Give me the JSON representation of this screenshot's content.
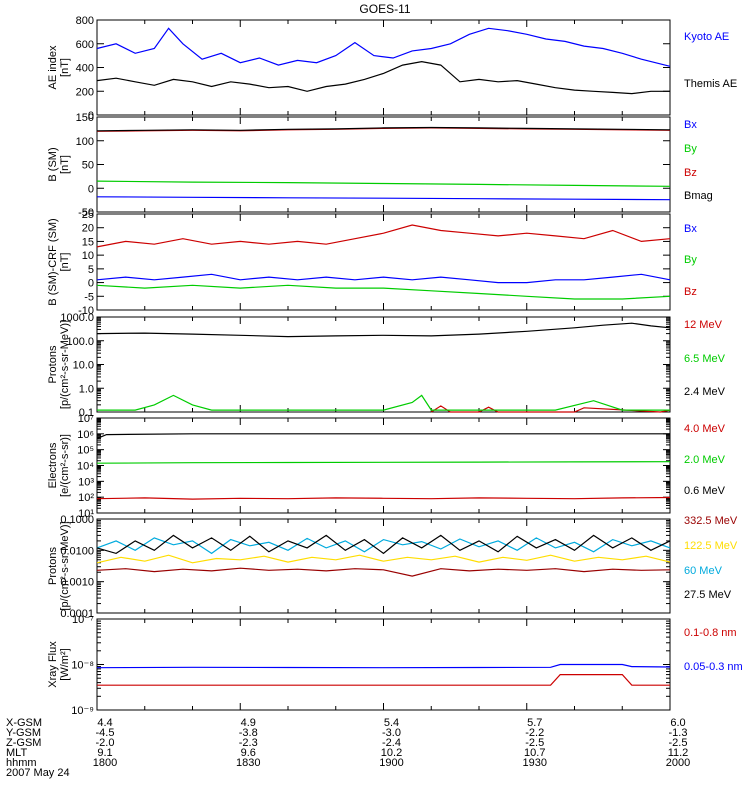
{
  "title": "GOES-11",
  "date_label": "2007 May 24",
  "colors": {
    "blue": "#0000ff",
    "green": "#00cc00",
    "red": "#cc0000",
    "darkred": "#990000",
    "black": "#000000",
    "cyan": "#00aadd",
    "yellow": "#ffdd00"
  },
  "bottom_axis": {
    "tick_times": [
      1800,
      1830,
      1900,
      1930,
      2000
    ],
    "rows": [
      {
        "name": "X-GSM",
        "values": [
          "4.4",
          "4.9",
          "5.4",
          "5.7",
          "6.0"
        ]
      },
      {
        "name": "Y-GSM",
        "values": [
          "-4.5",
          "-3.8",
          "-3.0",
          "-2.2",
          "-1.3"
        ]
      },
      {
        "name": "Z-GSM",
        "values": [
          "-2.0",
          "-2.3",
          "-2.4",
          "-2.5",
          "-2.5"
        ]
      },
      {
        "name": "MLT",
        "values": [
          "9.1",
          "9.6",
          "10.2",
          "10.7",
          "11.2"
        ]
      },
      {
        "name": "hhmm",
        "values": [
          "1800",
          "1830",
          "1900",
          "1930",
          "2000"
        ]
      }
    ]
  },
  "chart_data": [
    {
      "type": "line",
      "ylabel": "AE index\n[nT]",
      "ylim": [
        0,
        800
      ],
      "yticks": [
        0,
        200,
        400,
        600,
        800
      ],
      "ytick_labels": [
        "0",
        "200",
        "400",
        "600",
        "800"
      ],
      "log": false,
      "series": [
        {
          "name": "Kyoto AE",
          "color": "#0000ff",
          "x": [
            0,
            4,
            8,
            12,
            15,
            18,
            22,
            26,
            30,
            34,
            38,
            42,
            46,
            50,
            54,
            58,
            62,
            66,
            70,
            74,
            78,
            82,
            86,
            90,
            94,
            98,
            102,
            106,
            110,
            114,
            120
          ],
          "y": [
            560,
            600,
            520,
            560,
            730,
            600,
            470,
            520,
            440,
            480,
            420,
            460,
            440,
            500,
            610,
            500,
            480,
            540,
            560,
            600,
            680,
            730,
            710,
            680,
            640,
            620,
            580,
            560,
            520,
            470,
            410
          ]
        },
        {
          "name": "Themis AE",
          "color": "#000000",
          "x": [
            0,
            4,
            8,
            12,
            16,
            20,
            24,
            28,
            32,
            36,
            40,
            44,
            48,
            52,
            56,
            60,
            64,
            68,
            72,
            76,
            80,
            84,
            88,
            92,
            96,
            100,
            104,
            108,
            112,
            116,
            120
          ],
          "y": [
            290,
            310,
            280,
            250,
            300,
            280,
            240,
            280,
            260,
            230,
            240,
            200,
            240,
            260,
            300,
            350,
            420,
            450,
            420,
            280,
            300,
            280,
            290,
            260,
            230,
            210,
            200,
            190,
            180,
            200,
            200
          ]
        }
      ]
    },
    {
      "type": "line",
      "ylabel": "B (SM)\n[nT]",
      "ylim": [
        -50,
        150
      ],
      "yticks": [
        -50,
        0,
        50,
        100,
        150
      ],
      "ytick_labels": [
        "-50",
        "0",
        "50",
        "100",
        "150"
      ],
      "log": false,
      "series": [
        {
          "name": "Bx",
          "color": "#0000ff",
          "x": [
            0,
            20,
            40,
            60,
            80,
            100,
            120
          ],
          "y": [
            -18,
            -19,
            -20,
            -21,
            -22,
            -23,
            -24
          ]
        },
        {
          "name": "By",
          "color": "#00cc00",
          "x": [
            0,
            20,
            40,
            60,
            80,
            100,
            120
          ],
          "y": [
            15,
            13,
            12,
            10,
            8,
            6,
            4
          ]
        },
        {
          "name": "Bz",
          "color": "#cc0000",
          "x": [
            0,
            10,
            20,
            30,
            40,
            50,
            60,
            70,
            80,
            90,
            100,
            110,
            120
          ],
          "y": [
            120,
            121,
            122,
            121,
            123,
            124,
            126,
            127,
            126,
            125,
            124,
            123,
            122
          ]
        },
        {
          "name": "Bmag",
          "color": "#000000",
          "x": [
            0,
            10,
            20,
            30,
            40,
            50,
            60,
            70,
            80,
            90,
            100,
            110,
            120
          ],
          "y": [
            121,
            122,
            123,
            122,
            124,
            125,
            127,
            128,
            127,
            126,
            125,
            124,
            123
          ]
        }
      ]
    },
    {
      "type": "line",
      "ylabel": "B (SM)-CRF (SM)\n[nT]",
      "ylim": [
        -10,
        25
      ],
      "yticks": [
        -10,
        -5,
        0,
        5,
        10,
        15,
        20,
        25
      ],
      "ytick_labels": [
        "-10",
        "-5",
        "0",
        "5",
        "10",
        "15",
        "20",
        "25"
      ],
      "log": false,
      "series": [
        {
          "name": "Bx",
          "color": "#0000ff",
          "x": [
            0,
            6,
            12,
            18,
            24,
            30,
            36,
            42,
            48,
            54,
            60,
            66,
            72,
            78,
            84,
            90,
            96,
            102,
            108,
            114,
            120
          ],
          "y": [
            1,
            2,
            1,
            2,
            3,
            1,
            2,
            1,
            2,
            1,
            2,
            1,
            2,
            1,
            0,
            0,
            1,
            1,
            2,
            3,
            1
          ]
        },
        {
          "name": "By",
          "color": "#00cc00",
          "x": [
            0,
            10,
            20,
            30,
            40,
            50,
            60,
            70,
            80,
            90,
            100,
            110,
            120
          ],
          "y": [
            -1,
            -2,
            -1,
            -2,
            -1,
            -2,
            -2,
            -3,
            -4,
            -5,
            -6,
            -6,
            -5
          ]
        },
        {
          "name": "Bz",
          "color": "#cc0000",
          "x": [
            0,
            6,
            12,
            18,
            24,
            30,
            36,
            42,
            48,
            54,
            60,
            66,
            72,
            78,
            84,
            90,
            96,
            102,
            108,
            114,
            120
          ],
          "y": [
            13,
            15,
            14,
            16,
            14,
            15,
            14,
            15,
            14,
            16,
            18,
            21,
            19,
            18,
            17,
            18,
            17,
            16,
            19,
            15,
            16
          ]
        }
      ]
    },
    {
      "type": "line",
      "ylabel": "Protons\n[p/(cm²-s-sr-MeV)]",
      "ylim": [
        0.1,
        1000
      ],
      "yticks": [
        0.1,
        1,
        10,
        100,
        1000
      ],
      "ytick_labels": [
        "0.1",
        "1.0",
        "10.0",
        "100.0",
        "1000.0"
      ],
      "log": true,
      "series": [
        {
          "name": "12 MeV",
          "color": "#cc0000",
          "x": [
            70,
            72,
            74,
            80,
            82,
            84,
            100,
            102,
            118,
            120
          ],
          "y": [
            0.1,
            0.18,
            0.1,
            0.1,
            0.16,
            0.1,
            0.1,
            0.15,
            0.1,
            0.12
          ]
        },
        {
          "name": "6.5 MeV",
          "color": "#00cc00",
          "x": [
            0,
            8,
            12,
            16,
            20,
            24,
            30,
            40,
            50,
            60,
            66,
            68,
            70,
            76,
            86,
            96,
            104,
            110,
            120
          ],
          "y": [
            0.12,
            0.12,
            0.2,
            0.5,
            0.2,
            0.12,
            0.12,
            0.12,
            0.12,
            0.12,
            0.25,
            0.5,
            0.12,
            0.12,
            0.12,
            0.12,
            0.3,
            0.12,
            0.12
          ]
        },
        {
          "name": "2.4 MeV",
          "color": "#000000",
          "x": [
            0,
            10,
            20,
            30,
            40,
            50,
            60,
            70,
            80,
            90,
            100,
            106,
            112,
            116,
            120
          ],
          "y": [
            200,
            210,
            190,
            170,
            150,
            160,
            170,
            160,
            190,
            250,
            350,
            450,
            550,
            420,
            350
          ]
        }
      ]
    },
    {
      "type": "line",
      "ylabel": "Electrons\n[e/(cm²-s-sr)]",
      "ylim": [
        10,
        10000000
      ],
      "yticks": [
        10,
        100,
        1000,
        10000,
        100000,
        1000000,
        10000000
      ],
      "ytick_labels": [
        "10¹",
        "10²",
        "10³",
        "10⁴",
        "10⁵",
        "10⁶",
        "10⁷"
      ],
      "log": true,
      "series": [
        {
          "name": "4.0 MeV",
          "color": "#cc0000",
          "x": [
            0,
            10,
            20,
            30,
            40,
            50,
            60,
            70,
            80,
            90,
            100,
            110,
            120
          ],
          "y": [
            80,
            90,
            75,
            85,
            80,
            90,
            85,
            80,
            90,
            85,
            80,
            90,
            95
          ]
        },
        {
          "name": "2.0 MeV",
          "color": "#00cc00",
          "x": [
            0,
            20,
            40,
            60,
            80,
            100,
            120
          ],
          "y": [
            14000,
            15000,
            15500,
            16000,
            16500,
            17000,
            17500
          ]
        },
        {
          "name": "0.6 MeV",
          "color": "#000000",
          "x": [
            0,
            2,
            20,
            40,
            60,
            80,
            100,
            120
          ],
          "y": [
            500000,
            900000,
            1000000,
            1000000,
            1000000,
            1000000,
            1000000,
            1000000
          ]
        }
      ]
    },
    {
      "type": "line",
      "ylabel": "Protons\n[p/(cm²-s-sr-MeV)]",
      "ylim": [
        0.0001,
        0.1
      ],
      "yticks": [
        0.0001,
        0.001,
        0.01,
        0.1
      ],
      "ytick_labels": [
        "0.0001",
        "0.0010",
        "0.0100",
        "0.1000"
      ],
      "log": true,
      "series": [
        {
          "name": "332.5 MeV",
          "color": "#990000",
          "x": [
            0,
            6,
            12,
            18,
            24,
            30,
            36,
            42,
            48,
            54,
            60,
            66,
            72,
            78,
            84,
            90,
            96,
            102,
            108,
            114,
            120
          ],
          "y": [
            0.0023,
            0.0026,
            0.0021,
            0.0025,
            0.0022,
            0.0027,
            0.0023,
            0.0025,
            0.0022,
            0.0026,
            0.0024,
            0.0015,
            0.0026,
            0.0022,
            0.0025,
            0.0023,
            0.0026,
            0.0021,
            0.0025,
            0.0023,
            0.0024
          ]
        },
        {
          "name": "122.5 MeV",
          "color": "#ffdd00",
          "x": [
            0,
            5,
            10,
            15,
            20,
            25,
            30,
            35,
            40,
            45,
            50,
            55,
            60,
            65,
            70,
            75,
            80,
            85,
            90,
            95,
            100,
            105,
            110,
            115,
            120
          ],
          "y": [
            0.004,
            0.006,
            0.0045,
            0.007,
            0.004,
            0.0055,
            0.005,
            0.0065,
            0.0042,
            0.006,
            0.005,
            0.007,
            0.0045,
            0.006,
            0.005,
            0.0065,
            0.0042,
            0.006,
            0.0048,
            0.007,
            0.0045,
            0.006,
            0.005,
            0.0065,
            0.0042
          ]
        },
        {
          "name": "60 MeV",
          "color": "#00aadd",
          "x": [
            0,
            4,
            8,
            12,
            16,
            20,
            24,
            28,
            32,
            36,
            40,
            44,
            48,
            52,
            56,
            60,
            64,
            68,
            72,
            76,
            80,
            84,
            88,
            92,
            96,
            100,
            104,
            108,
            112,
            116,
            120
          ],
          "y": [
            0.012,
            0.02,
            0.01,
            0.025,
            0.015,
            0.02,
            0.008,
            0.022,
            0.014,
            0.018,
            0.01,
            0.024,
            0.012,
            0.02,
            0.009,
            0.022,
            0.015,
            0.019,
            0.011,
            0.023,
            0.013,
            0.02,
            0.01,
            0.025,
            0.012,
            0.018,
            0.009,
            0.022,
            0.014,
            0.02,
            0.012
          ]
        },
        {
          "name": "27.5 MeV",
          "color": "#000000",
          "x": [
            0,
            4,
            8,
            12,
            16,
            20,
            24,
            28,
            32,
            36,
            40,
            44,
            48,
            52,
            56,
            60,
            64,
            68,
            72,
            76,
            80,
            84,
            88,
            92,
            96,
            100,
            104,
            108,
            112,
            116,
            120
          ],
          "y": [
            0.012,
            0.008,
            0.02,
            0.01,
            0.03,
            0.012,
            0.025,
            0.01,
            0.028,
            0.009,
            0.02,
            0.012,
            0.03,
            0.01,
            0.022,
            0.008,
            0.025,
            0.012,
            0.03,
            0.01,
            0.02,
            0.009,
            0.028,
            0.012,
            0.022,
            0.01,
            0.03,
            0.012,
            0.025,
            0.01,
            0.02
          ]
        }
      ]
    },
    {
      "type": "line",
      "ylabel": "Xray Flux\n[W/m²]",
      "ylim": [
        1e-09,
        1e-07
      ],
      "yticks": [
        1e-09,
        1e-08,
        1e-07
      ],
      "ytick_labels": [
        "10⁻⁹",
        "10⁻⁸",
        "10⁻⁷"
      ],
      "log": true,
      "series": [
        {
          "name": "0.1-0.8 nm",
          "color": "#cc0000",
          "x": [
            0,
            20,
            40,
            60,
            80,
            95,
            97,
            110,
            112,
            120
          ],
          "y": [
            3.5e-09,
            3.5e-09,
            3.5e-09,
            3.5e-09,
            3.5e-09,
            3.5e-09,
            6e-09,
            6e-09,
            3.5e-09,
            3.5e-09
          ]
        },
        {
          "name": "0.05-0.3 nm",
          "color": "#0000ff",
          "x": [
            0,
            20,
            40,
            60,
            80,
            95,
            97,
            110,
            112,
            120
          ],
          "y": [
            8.5e-09,
            8.7e-09,
            8.6e-09,
            8.5e-09,
            8.6e-09,
            8.7e-09,
            1e-08,
            1e-08,
            9e-09,
            8.8e-09
          ]
        }
      ]
    }
  ]
}
